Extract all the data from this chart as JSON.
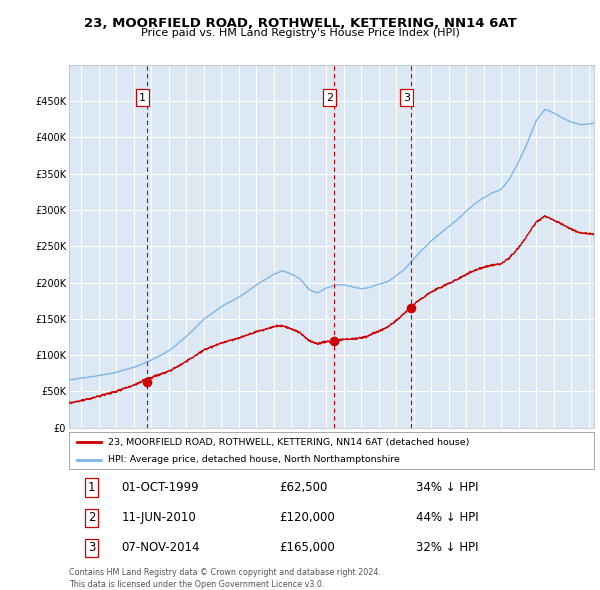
{
  "title": "23, MOORFIELD ROAD, ROTHWELL, KETTERING, NN14 6AT",
  "subtitle": "Price paid vs. HM Land Registry's House Price Index (HPI)",
  "background_color": "#dce9f5",
  "plot_bg_color": "#dce9f5",
  "grid_color": "#ffffff",
  "sale_color": "#cc0000",
  "hpi_color": "#7eb6e8",
  "dashed_line_color": "#cc0000",
  "sales": [
    {
      "date_num": 1999.75,
      "price": 62500,
      "label": "1"
    },
    {
      "date_num": 2010.44,
      "price": 120000,
      "label": "2"
    },
    {
      "date_num": 2014.85,
      "price": 165000,
      "label": "3"
    }
  ],
  "legend_sale_label": "23, MOORFIELD ROAD, ROTHWELL, KETTERING, NN14 6AT (detached house)",
  "legend_hpi_label": "HPI: Average price, detached house, North Northamptonshire",
  "table_rows": [
    {
      "num": "1",
      "date": "01-OCT-1999",
      "price": "£62,500",
      "pct": "34% ↓ HPI"
    },
    {
      "num": "2",
      "date": "11-JUN-2010",
      "price": "£120,000",
      "pct": "44% ↓ HPI"
    },
    {
      "num": "3",
      "date": "07-NOV-2014",
      "price": "£165,000",
      "pct": "32% ↓ HPI"
    }
  ],
  "footer": "Contains HM Land Registry data © Crown copyright and database right 2024.\nThis data is licensed under the Open Government Licence v3.0.",
  "ylim": [
    0,
    500000
  ],
  "yticks": [
    0,
    50000,
    100000,
    150000,
    200000,
    250000,
    300000,
    350000,
    400000,
    450000
  ],
  "xlim_start": 1995.3,
  "xlim_end": 2025.3
}
